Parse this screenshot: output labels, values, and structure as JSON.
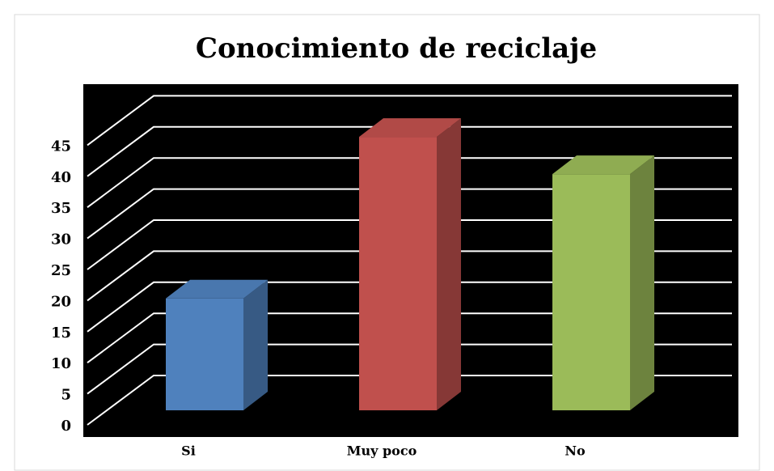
{
  "chart_data": {
    "type": "bar3d",
    "title": "Conocimiento de reciclaje",
    "categories": [
      "Si",
      "Muy poco",
      "No"
    ],
    "values": [
      18,
      44,
      38
    ],
    "colors": [
      "#4f81bd",
      "#c0504d",
      "#9bbb59"
    ],
    "ylim": [
      0,
      45
    ],
    "yticks": [
      0,
      5,
      10,
      15,
      20,
      25,
      30,
      35,
      40,
      45
    ],
    "grid": true
  }
}
